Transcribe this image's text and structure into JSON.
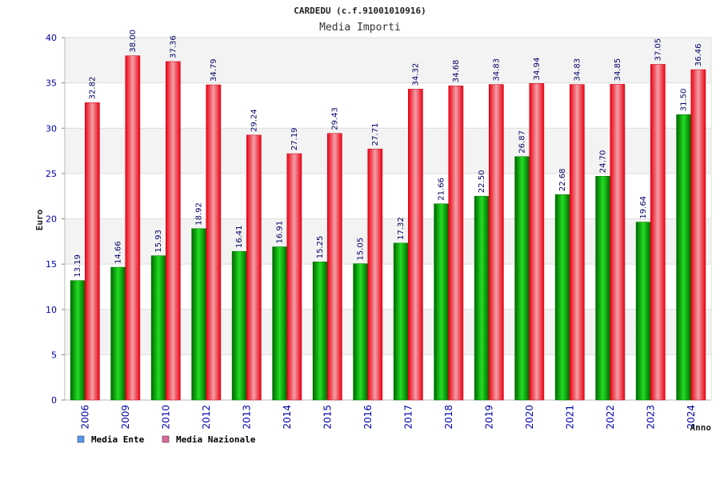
{
  "chart_data": {
    "type": "bar",
    "title": "CARDEDU (c.f.91001010916)",
    "subtitle": "Media Importi",
    "xlabel": "Anno",
    "ylabel": "Euro",
    "ylim": [
      0,
      40
    ],
    "yticks": [
      "0",
      "5",
      "10",
      "15",
      "20",
      "25",
      "30",
      "35",
      "40"
    ],
    "categories": [
      "2006",
      "2009",
      "2010",
      "2012",
      "2013",
      "2014",
      "2015",
      "2016",
      "2017",
      "2018",
      "2019",
      "2020",
      "2021",
      "2022",
      "2023",
      "2024"
    ],
    "series": [
      {
        "name": "Media Ente",
        "values": [
          13.19,
          14.66,
          15.93,
          18.92,
          16.41,
          16.91,
          15.25,
          15.05,
          17.32,
          21.66,
          22.5,
          26.87,
          22.68,
          24.7,
          19.64,
          31.5
        ],
        "labels": [
          "13.19",
          "14.66",
          "15.93",
          "18.92",
          "16.41",
          "16.91",
          "15.25",
          "15.05",
          "17.32",
          "21.66",
          "22.50",
          "26.87",
          "22.68",
          "24.70",
          "19.64",
          "31.50"
        ],
        "color": "#00a000",
        "legend_color": "#5599ee"
      },
      {
        "name": "Media Nazionale",
        "values": [
          32.82,
          38.0,
          37.36,
          34.79,
          29.24,
          27.19,
          29.43,
          27.71,
          34.32,
          34.68,
          34.83,
          34.94,
          34.83,
          34.85,
          37.05,
          36.46
        ],
        "labels": [
          "32.82",
          "38.00",
          "37.36",
          "34.79",
          "29.24",
          "27.19",
          "29.43",
          "27.71",
          "34.32",
          "34.68",
          "34.83",
          "34.94",
          "34.83",
          "34.85",
          "37.05",
          "36.46"
        ],
        "color": "#ee1122",
        "legend_color": "#dd6699"
      }
    ],
    "grid": true,
    "legend_position": "bottom-left"
  }
}
